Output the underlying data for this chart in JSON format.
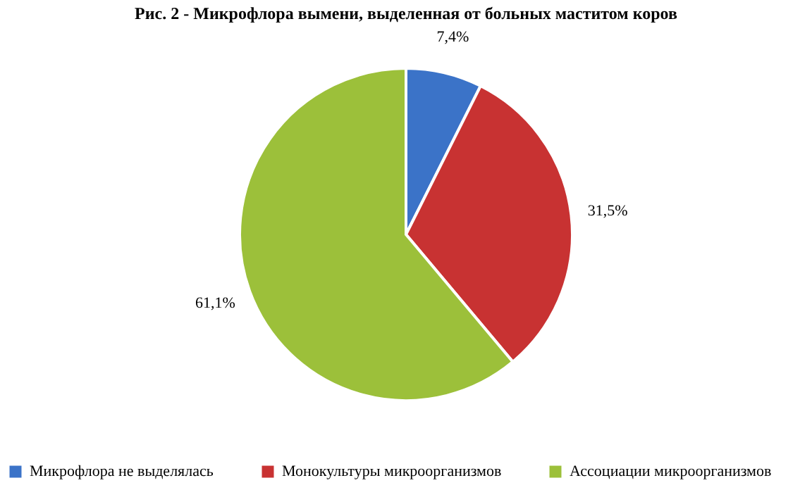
{
  "chart_data": {
    "type": "pie",
    "title": "Рис. 2 - Микрофлора вымени, выделенная от больных маститом коров",
    "categories": [
      "Микрофлора не выделялась",
      "Монокультуры микроорганизмов",
      "Ассоциации микроорганизмов"
    ],
    "values": [
      7.4,
      31.5,
      61.1
    ],
    "colors": [
      "#3b73c8",
      "#c83232",
      "#9cc03a"
    ],
    "value_labels": [
      "7,4%",
      "31,5%",
      "61,1%"
    ],
    "legend": "bottom"
  }
}
